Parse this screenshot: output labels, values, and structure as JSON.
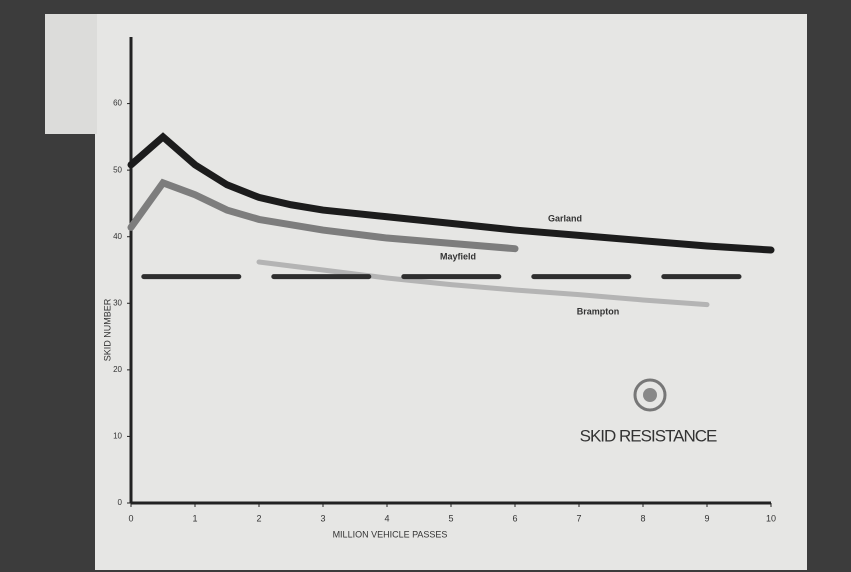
{
  "chart_data": {
    "type": "line",
    "annotation": "SKID RESISTANCE",
    "xlabel": "MILLION VEHICLE PASSES",
    "ylabel": "SKID NUMBER",
    "xlim": [
      0,
      10
    ],
    "xticks": [
      0,
      1,
      2,
      3,
      4,
      5,
      6,
      7,
      8,
      9,
      10
    ],
    "ylim": [
      0,
      70
    ],
    "yticks": [
      0,
      10,
      20,
      30,
      40,
      50,
      60
    ],
    "series": [
      {
        "name": "Garland",
        "color": "#1c1c1c",
        "x": [
          0,
          0.5,
          1,
          1.5,
          2,
          2.5,
          3,
          4,
          5,
          6,
          7,
          8,
          9,
          10
        ],
        "values": [
          50.8,
          55,
          50.8,
          47.8,
          45.9,
          44.8,
          44,
          43,
          42,
          41,
          40.2,
          39.4,
          38.6,
          38
        ]
      },
      {
        "name": "Mayfield",
        "color": "#7d7d7d",
        "x": [
          0,
          0.5,
          1,
          1.5,
          2,
          3,
          4,
          5,
          6
        ],
        "values": [
          41.4,
          48.1,
          46.3,
          44,
          42.6,
          41,
          39.8,
          39,
          38.2
        ]
      },
      {
        "name": "Brampton",
        "color": "#b4b4b4",
        "x": [
          2,
          3,
          4,
          5,
          6,
          7,
          8,
          9
        ],
        "values": [
          36.2,
          35,
          33.8,
          32.8,
          32,
          31.3,
          30.5,
          29.8
        ]
      },
      {
        "color": "#2e2e2e",
        "dashed": true,
        "x": [
          0.2,
          9.5
        ],
        "values": [
          34,
          34
        ]
      }
    ]
  }
}
